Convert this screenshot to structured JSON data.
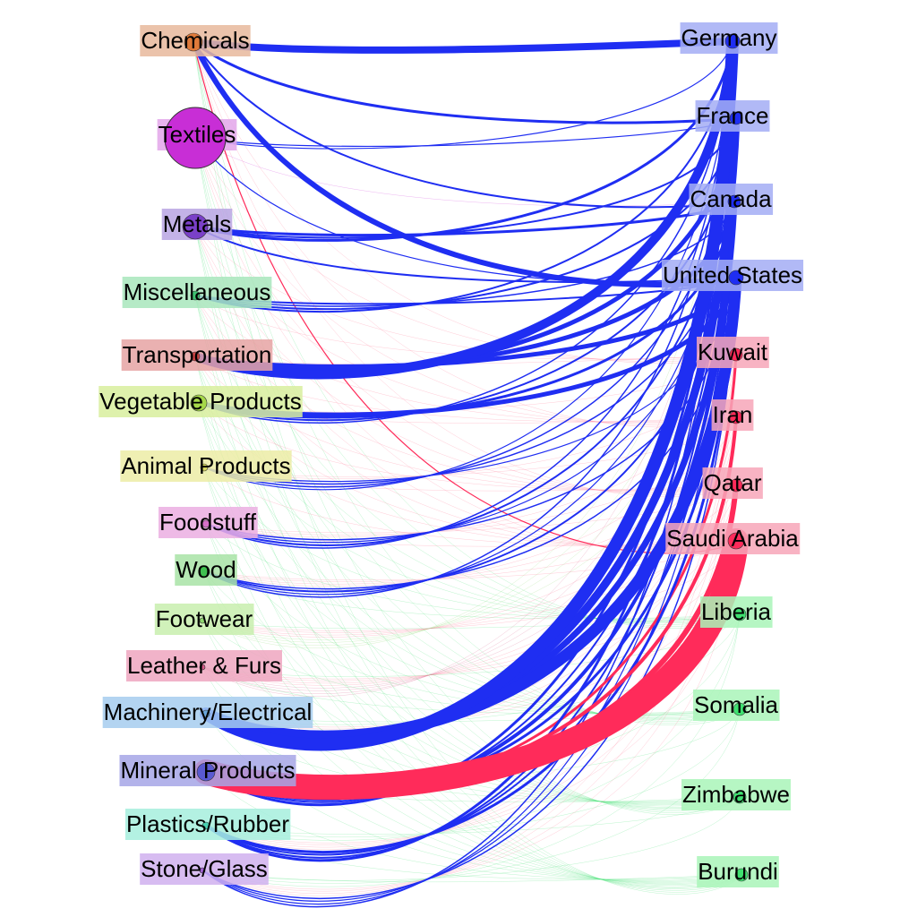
{
  "chart_data": {
    "type": "bipartite-network",
    "title": "",
    "products": [
      {
        "name": "Chemicals",
        "color": "#e07a3a",
        "bg": "#e8b89c"
      },
      {
        "name": "Textiles",
        "color": "#c82ed6",
        "bg": "#e3a6ea"
      },
      {
        "name": "Metals",
        "color": "#7a40c8",
        "bg": "#b9a4e3"
      },
      {
        "name": "Miscellaneous",
        "color": "#3fc070",
        "bg": "#a8e6bc"
      },
      {
        "name": "Transportation",
        "color": "#cc4444",
        "bg": "#e6a3a3"
      },
      {
        "name": "Vegetable Products",
        "color": "#a6d84a",
        "bg": "#d8ee9e"
      },
      {
        "name": "Animal Products",
        "color": "#d6d860",
        "bg": "#ececa6"
      },
      {
        "name": "Foodstuff",
        "color": "#d670c8",
        "bg": "#ebaee2"
      },
      {
        "name": "Wood",
        "color": "#40c050",
        "bg": "#a8e3a6"
      },
      {
        "name": "Footwear",
        "color": "#8fd870",
        "bg": "#c8eeae"
      },
      {
        "name": "Leather & Furs",
        "color": "#d65a88",
        "bg": "#eea6c0"
      },
      {
        "name": "Machinery/Electrical",
        "color": "#6aa6dc",
        "bg": "#a6cdee"
      },
      {
        "name": "Mineral Products",
        "color": "#5a5ad0",
        "bg": "#a6a6e6"
      },
      {
        "name": "Plastics/Rubber",
        "color": "#4ad0b0",
        "bg": "#a6eedd"
      },
      {
        "name": "Stone/Glass",
        "color": "#a060d0",
        "bg": "#d0b0ee"
      }
    ],
    "countries": [
      {
        "name": "Germany",
        "group": "high",
        "color": "#1f2ef2",
        "bg": "#a3adf5"
      },
      {
        "name": "France",
        "group": "high",
        "color": "#1f2ef2",
        "bg": "#a3adf5"
      },
      {
        "name": "Canada",
        "group": "high",
        "color": "#1f2ef2",
        "bg": "#a3adf5"
      },
      {
        "name": "United States",
        "group": "high",
        "color": "#1f2ef2",
        "bg": "#a3adf5"
      },
      {
        "name": "Kuwait",
        "group": "oil",
        "color": "#ff2b5a",
        "bg": "#f7a6b8"
      },
      {
        "name": "Iran",
        "group": "oil",
        "color": "#ff2b5a",
        "bg": "#f7a6b8"
      },
      {
        "name": "Qatar",
        "group": "oil",
        "color": "#ff2b5a",
        "bg": "#f7a6b8"
      },
      {
        "name": "Saudi Arabia",
        "group": "oil",
        "color": "#ff2b5a",
        "bg": "#f7a6b8"
      },
      {
        "name": "Liberia",
        "group": "low",
        "color": "#3fe070",
        "bg": "#a9f5b8"
      },
      {
        "name": "Somalia",
        "group": "low",
        "color": "#3fe070",
        "bg": "#a9f5b8"
      },
      {
        "name": "Zimbabwe",
        "group": "low",
        "color": "#3fe070",
        "bg": "#a9f5b8"
      },
      {
        "name": "Burundi",
        "group": "low",
        "color": "#3fe070",
        "bg": "#a9f5b8"
      }
    ],
    "edges": [
      {
        "source": "Chemicals",
        "target": "Germany",
        "weight": 8
      },
      {
        "source": "Chemicals",
        "target": "France",
        "weight": 3
      },
      {
        "source": "Chemicals",
        "target": "Canada",
        "weight": 2
      },
      {
        "source": "Chemicals",
        "target": "United States",
        "weight": 6
      },
      {
        "source": "Chemicals",
        "target": "Saudi Arabia",
        "weight": 1
      },
      {
        "source": "Textiles",
        "target": "Germany",
        "weight": 1
      },
      {
        "source": "Textiles",
        "target": "France",
        "weight": 1
      },
      {
        "source": "Textiles",
        "target": "United States",
        "weight": 1
      },
      {
        "source": "Metals",
        "target": "Germany",
        "weight": 3
      },
      {
        "source": "Metals",
        "target": "France",
        "weight": 2
      },
      {
        "source": "Metals",
        "target": "Canada",
        "weight": 3
      },
      {
        "source": "Metals",
        "target": "United States",
        "weight": 2
      },
      {
        "source": "Miscellaneous",
        "target": "Germany",
        "weight": 2
      },
      {
        "source": "Miscellaneous",
        "target": "France",
        "weight": 2
      },
      {
        "source": "Miscellaneous",
        "target": "Canada",
        "weight": 1.5
      },
      {
        "source": "Miscellaneous",
        "target": "United States",
        "weight": 2
      },
      {
        "source": "Transportation",
        "target": "Germany",
        "weight": 10
      },
      {
        "source": "Transportation",
        "target": "France",
        "weight": 5
      },
      {
        "source": "Transportation",
        "target": "Canada",
        "weight": 5
      },
      {
        "source": "Transportation",
        "target": "United States",
        "weight": 5
      },
      {
        "source": "Vegetable Products",
        "target": "Germany",
        "weight": 1.5
      },
      {
        "source": "Vegetable Products",
        "target": "France",
        "weight": 2
      },
      {
        "source": "Vegetable Products",
        "target": "Canada",
        "weight": 3
      },
      {
        "source": "Vegetable Products",
        "target": "United States",
        "weight": 5
      },
      {
        "source": "Animal Products",
        "target": "Germany",
        "weight": 1
      },
      {
        "source": "Animal Products",
        "target": "France",
        "weight": 1.5
      },
      {
        "source": "Animal Products",
        "target": "Canada",
        "weight": 1.5
      },
      {
        "source": "Animal Products",
        "target": "United States",
        "weight": 1
      },
      {
        "source": "Foodstuff",
        "target": "Germany",
        "weight": 1.5
      },
      {
        "source": "Foodstuff",
        "target": "France",
        "weight": 2
      },
      {
        "source": "Foodstuff",
        "target": "Canada",
        "weight": 1
      },
      {
        "source": "Foodstuff",
        "target": "United States",
        "weight": 1.5
      },
      {
        "source": "Wood",
        "target": "Germany",
        "weight": 1.5
      },
      {
        "source": "Wood",
        "target": "France",
        "weight": 1
      },
      {
        "source": "Wood",
        "target": "Canada",
        "weight": 2
      },
      {
        "source": "Wood",
        "target": "United States",
        "weight": 1.5
      },
      {
        "source": "Machinery/Electrical",
        "target": "Germany",
        "weight": 14
      },
      {
        "source": "Machinery/Electrical",
        "target": "France",
        "weight": 9
      },
      {
        "source": "Machinery/Electrical",
        "target": "Canada",
        "weight": 7
      },
      {
        "source": "Machinery/Electrical",
        "target": "United States",
        "weight": 13
      },
      {
        "source": "Mineral Products",
        "target": "Germany",
        "weight": 3
      },
      {
        "source": "Mineral Products",
        "target": "France",
        "weight": 2
      },
      {
        "source": "Mineral Products",
        "target": "Canada",
        "weight": 4
      },
      {
        "source": "Mineral Products",
        "target": "United States",
        "weight": 3
      },
      {
        "source": "Mineral Products",
        "target": "Kuwait",
        "weight": 3
      },
      {
        "source": "Mineral Products",
        "target": "Iran",
        "weight": 4
      },
      {
        "source": "Mineral Products",
        "target": "Qatar",
        "weight": 6
      },
      {
        "source": "Mineral Products",
        "target": "Saudi Arabia",
        "weight": 28
      },
      {
        "source": "Plastics/Rubber",
        "target": "Germany",
        "weight": 3
      },
      {
        "source": "Plastics/Rubber",
        "target": "France",
        "weight": 2
      },
      {
        "source": "Plastics/Rubber",
        "target": "Canada",
        "weight": 2
      },
      {
        "source": "Plastics/Rubber",
        "target": "United States",
        "weight": 3
      },
      {
        "source": "Stone/Glass",
        "target": "Germany",
        "weight": 1.5
      },
      {
        "source": "Stone/Glass",
        "target": "France",
        "weight": 1
      },
      {
        "source": "Stone/Glass",
        "target": "Canada",
        "weight": 1
      },
      {
        "source": "Stone/Glass",
        "target": "United States",
        "weight": 1.5
      }
    ]
  }
}
